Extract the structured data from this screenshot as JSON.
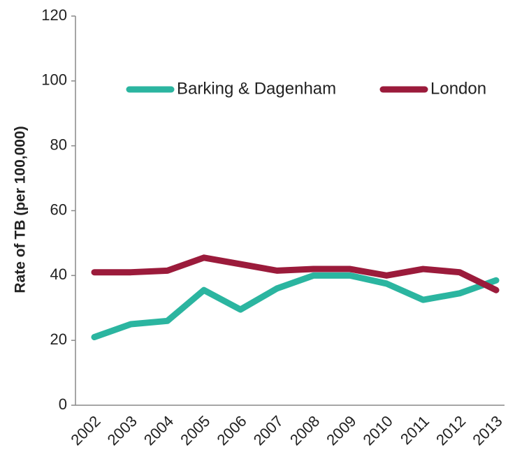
{
  "chart_data": {
    "type": "line",
    "y_label": "Rate of TB (per 100,000)",
    "categories": [
      "2002",
      "2003",
      "2004",
      "2005",
      "2006",
      "2007",
      "2008",
      "2009",
      "2010",
      "2011",
      "2012",
      "2013"
    ],
    "series": [
      {
        "name": "Barking & Dagenham",
        "color": "#2bb5a0",
        "values": [
          21,
          25,
          26,
          35.5,
          29.5,
          36,
          40,
          40,
          37.5,
          32.5,
          34.5,
          38.5
        ]
      },
      {
        "name": "London",
        "color": "#9b1b3b",
        "values": [
          41,
          41,
          41.5,
          45.5,
          43.5,
          41.5,
          42,
          42,
          40,
          42,
          41,
          35.5
        ]
      }
    ],
    "ylim": [
      0,
      120
    ],
    "yticks": [
      0,
      20,
      40,
      60,
      80,
      100,
      120
    ],
    "grid": false,
    "legend": "top"
  }
}
